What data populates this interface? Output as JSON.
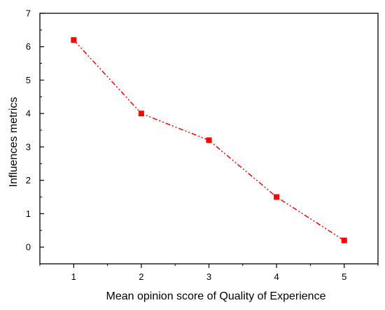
{
  "chart_data": {
    "type": "line",
    "title": "",
    "xlabel": "Mean opinion score of Quality of Experience",
    "ylabel": "Influences metrics",
    "x": [
      1,
      2,
      3,
      4,
      5
    ],
    "series": [
      {
        "values": [
          6.2,
          4.0,
          3.2,
          1.5,
          0.2
        ],
        "color": "#ff0000",
        "line_style": "dash-dot-dot",
        "marker": "square"
      }
    ],
    "xlim": [
      0.5,
      5.5
    ],
    "ylim": [
      -0.5,
      7
    ],
    "xticks": [
      "1",
      "2",
      "3",
      "4",
      "5"
    ],
    "yticks": [
      "0",
      "1",
      "2",
      "3",
      "4",
      "5",
      "6",
      "7"
    ],
    "grid": false,
    "legend": "none"
  }
}
